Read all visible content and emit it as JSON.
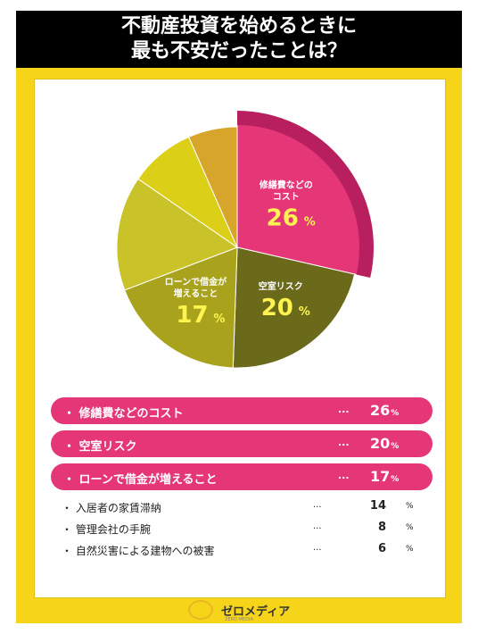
{
  "title_lines": [
    "不動産投資を始めるときに",
    "最も不安だったことは？"
  ],
  "chart_data": {
    "type": "pie",
    "title": "不動産投資を始めるときに最も不安だったことは？",
    "categories": [
      "修繕費などのコスト",
      "空室リスク",
      "ローンで借金が増えること",
      "入居者の家賃滞納",
      "管理会社の手腕",
      "自然災害による建物への被害"
    ],
    "values": [
      26,
      20,
      17,
      14,
      8,
      6
    ],
    "unit": "%",
    "slice_colors": [
      "#e53777",
      "#6b6a1b",
      "#a9a21c",
      "#c9c228",
      "#dccf17",
      "#d8a52c"
    ],
    "highlighted": [
      0
    ],
    "labeled_slices": [
      {
        "index": 0,
        "lines": [
          "修繕費などの",
          "コスト"
        ],
        "value": "26",
        "unit": "%"
      },
      {
        "index": 1,
        "lines": [
          "空室リスク"
        ],
        "value": "20",
        "unit": "%"
      },
      {
        "index": 2,
        "lines": [
          "ローンで借金が",
          "増えること"
        ],
        "value": "17",
        "unit": "%"
      }
    ]
  },
  "list": [
    {
      "bullet": "・",
      "label": "修繕費などのコスト",
      "dots": "...",
      "value": "26",
      "unit": "%",
      "highlight": true
    },
    {
      "bullet": "・",
      "label": "空室リスク",
      "dots": "...",
      "value": "20",
      "unit": "%",
      "highlight": true
    },
    {
      "bullet": "・",
      "label": "ローンで借金が増えること",
      "dots": "...",
      "value": "17",
      "unit": "%",
      "highlight": true
    },
    {
      "bullet": "・",
      "label": "入居者の家賃滞納",
      "dots": "...",
      "value": "14",
      "unit": "%",
      "highlight": false
    },
    {
      "bullet": "・",
      "label": "管理会社の手腕",
      "dots": "...",
      "value": "8",
      "unit": "%",
      "highlight": false
    },
    {
      "bullet": "・",
      "label": "自然災害による建物への被害",
      "dots": "...",
      "value": "6",
      "unit": "%",
      "highlight": false
    }
  ],
  "footer": {
    "logo_text": "ゼロメディア",
    "logo_sub": "ZERO MEDIA"
  },
  "colors": {
    "background": "#f6d41a",
    "header": "#000000",
    "accent": "#e53777"
  }
}
